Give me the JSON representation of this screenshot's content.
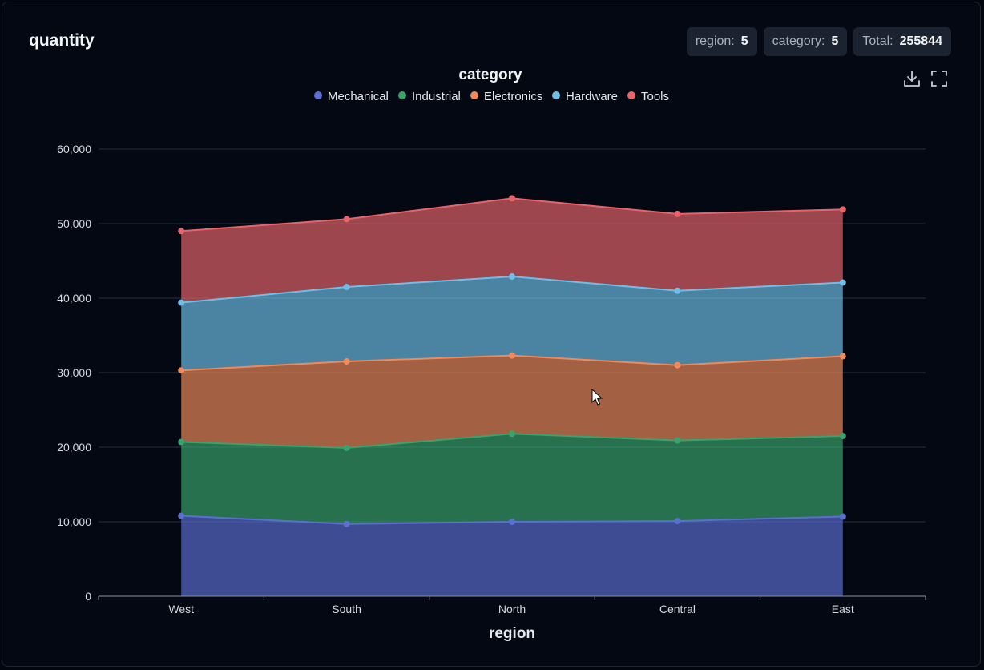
{
  "title": "quantity",
  "badges": [
    {
      "label": "region:",
      "value": "5"
    },
    {
      "label": "category:",
      "value": "5"
    },
    {
      "label": "Total:",
      "value": "255844"
    }
  ],
  "toolbar": {
    "download_icon": "download-icon",
    "fullscreen_icon": "fullscreen-icon"
  },
  "chart_data": {
    "type": "area",
    "stacked": true,
    "legend_title": "category",
    "legend_position": "top-center",
    "xlabel": "region",
    "ylabel": "",
    "categories": [
      "West",
      "South",
      "North",
      "Central",
      "East"
    ],
    "ylim": [
      0,
      60000
    ],
    "yticks": [
      0,
      10000,
      20000,
      30000,
      40000,
      50000,
      60000
    ],
    "ytick_labels": [
      "0",
      "10,000",
      "20,000",
      "30,000",
      "40,000",
      "50,000",
      "60,000"
    ],
    "grid": true,
    "series": [
      {
        "name": "Mechanical",
        "color": "#5b6fd1",
        "values": [
          10800,
          9700,
          10000,
          10100,
          10700
        ]
      },
      {
        "name": "Industrial",
        "color": "#3aa36d",
        "values": [
          9900,
          10200,
          11800,
          10800,
          10800
        ]
      },
      {
        "name": "Electronics",
        "color": "#f08a5a",
        "values": [
          9600,
          11600,
          10500,
          10100,
          10700
        ]
      },
      {
        "name": "Hardware",
        "color": "#6fbee8",
        "values": [
          9100,
          10000,
          10600,
          10000,
          9900
        ]
      },
      {
        "name": "Tools",
        "color": "#e8646a",
        "values": [
          9600,
          9100,
          10500,
          10300,
          9800
        ]
      }
    ]
  }
}
